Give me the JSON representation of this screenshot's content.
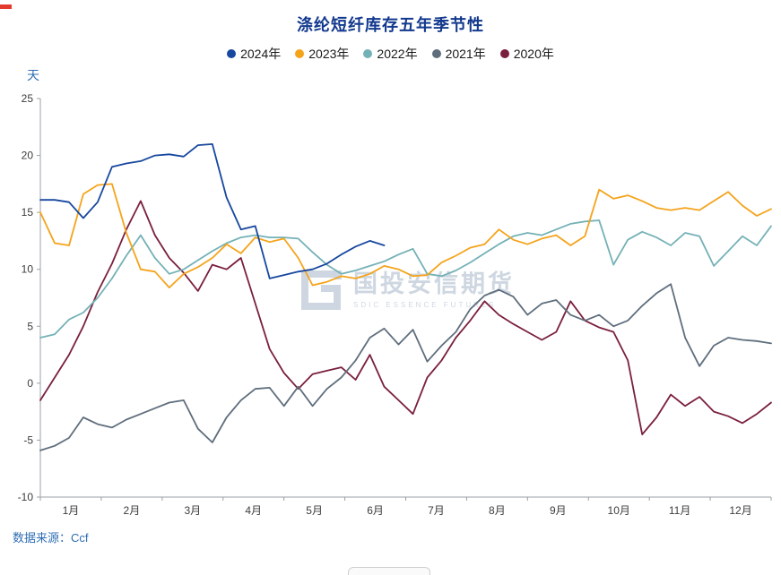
{
  "unit_label": "天",
  "source": "数据来源：Ccf",
  "watermark": {
    "name": "国投安信期货",
    "sub": "SDIC ESSENCE FUTURES"
  },
  "chart_data": {
    "type": "line",
    "title": "涤纶短纤库存五年季节性",
    "ylabel": "天",
    "xlabel": "",
    "ylim": [
      -10,
      25
    ],
    "yticks": [
      25,
      20,
      15,
      10,
      5,
      0,
      -5,
      -10
    ],
    "x_categories": [
      "1月",
      "2月",
      "3月",
      "4月",
      "5月",
      "6月",
      "7月",
      "8月",
      "9月",
      "10月",
      "11月",
      "12月"
    ],
    "points_per_year": 52,
    "grid": false,
    "legend_position": "top",
    "series": [
      {
        "name": "2024年",
        "color": "#17479e",
        "values": [
          16.1,
          16.1,
          15.9,
          14.5,
          15.9,
          19.0,
          19.3,
          19.5,
          20.0,
          20.1,
          19.9,
          20.9,
          21.0,
          16.3,
          13.5,
          13.8,
          9.2,
          9.5,
          9.8,
          10.0,
          10.5,
          11.3,
          12.0,
          12.5,
          12.1
        ]
      },
      {
        "name": "2023年",
        "color": "#f5a31b",
        "values": [
          15.0,
          12.3,
          12.1,
          16.6,
          17.4,
          17.5,
          13.2,
          10.0,
          9.8,
          8.4,
          9.6,
          10.2,
          11.0,
          12.2,
          11.4,
          12.8,
          12.4,
          12.7,
          11.0,
          8.6,
          8.9,
          9.4,
          9.2,
          9.6,
          10.3,
          10.0,
          9.4,
          9.5,
          10.6,
          11.2,
          11.9,
          12.2,
          13.5,
          12.6,
          12.2,
          12.7,
          13.0,
          12.1,
          12.9,
          17.0,
          16.2,
          16.5,
          16.0,
          15.4,
          15.2,
          15.4,
          15.2,
          16.0,
          16.8,
          15.6,
          14.7,
          15.3
        ]
      },
      {
        "name": "2022年",
        "color": "#74b1b6",
        "values": [
          4.0,
          4.3,
          5.6,
          6.2,
          7.5,
          9.2,
          11.2,
          13.0,
          11.0,
          9.6,
          10.0,
          10.8,
          11.6,
          12.3,
          12.8,
          13.0,
          12.8,
          12.8,
          12.7,
          11.5,
          10.4,
          9.6,
          9.9,
          10.3,
          10.7,
          11.3,
          11.8,
          9.6,
          9.4,
          9.9,
          10.6,
          11.4,
          12.2,
          12.9,
          13.2,
          13.0,
          13.5,
          14.0,
          14.2,
          14.3,
          10.4,
          12.6,
          13.3,
          12.8,
          12.1,
          13.2,
          12.9,
          10.3,
          11.6,
          12.9,
          12.1,
          13.8
        ]
      },
      {
        "name": "2021年",
        "color": "#5f6e7d",
        "values": [
          -5.9,
          -5.5,
          -4.8,
          -3.0,
          -3.6,
          -3.9,
          -3.2,
          -2.7,
          -2.2,
          -1.7,
          -1.5,
          -4.0,
          -5.2,
          -3.0,
          -1.5,
          -0.5,
          -0.4,
          -2.0,
          -0.3,
          -2.0,
          -0.5,
          0.5,
          2.0,
          4.0,
          4.8,
          3.4,
          4.7,
          1.9,
          3.3,
          4.5,
          6.5,
          7.7,
          8.2,
          7.6,
          6.0,
          7.0,
          7.3,
          6.0,
          5.5,
          6.0,
          5.0,
          5.5,
          6.8,
          7.9,
          8.7,
          4.0,
          1.5,
          3.3,
          4.0,
          3.8,
          3.7,
          3.5
        ]
      },
      {
        "name": "2020年",
        "color": "#7a1f3d",
        "values": [
          -1.5,
          0.5,
          2.5,
          5.0,
          8.0,
          10.5,
          13.5,
          16.0,
          13.0,
          11.0,
          9.7,
          8.1,
          10.4,
          10.0,
          11.0,
          7.0,
          3.0,
          0.9,
          -0.5,
          0.8,
          1.1,
          1.4,
          0.3,
          2.5,
          -0.3,
          -1.5,
          -2.7,
          0.5,
          2.0,
          4.0,
          5.5,
          7.2,
          6.0,
          5.2,
          4.5,
          3.8,
          4.5,
          7.2,
          5.5,
          4.9,
          4.5,
          2.0,
          -4.5,
          -3.0,
          -1.0,
          -2.0,
          -1.2,
          -2.5,
          -2.9,
          -3.5,
          -2.7,
          -1.7
        ]
      }
    ]
  }
}
